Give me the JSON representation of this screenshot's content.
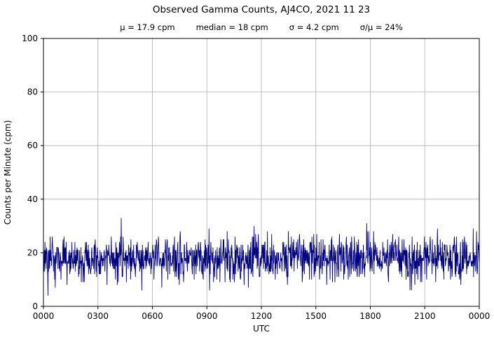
{
  "chart": {
    "title": "Observed Gamma Counts, AJ4CO, 2021 11 23",
    "stats": [
      "μ = 17.9 cpm",
      "median = 18 cpm",
      "σ = 4.2 cpm",
      "σ/μ = 24%"
    ]
  },
  "chart_data": {
    "type": "line",
    "title": "Observed Gamma Counts, AJ4CO, 2021 11 23",
    "subtitle": "μ = 17.9 cpm   median = 18 cpm   σ = 4.2 cpm   σ/μ = 24%",
    "xlabel": "UTC",
    "ylabel": "Counts per Minute (cpm)",
    "ylim": [
      0,
      100
    ],
    "yticks": [
      0,
      20,
      40,
      60,
      80,
      100
    ],
    "xtick_labels": [
      "0000",
      "0300",
      "0600",
      "0900",
      "1200",
      "1500",
      "1800",
      "2100",
      "0000"
    ],
    "x_minutes_range": [
      0,
      1440
    ],
    "grid": true,
    "legend": "none",
    "line_color": "#000080",
    "grid_color": "#b0b0b0",
    "series": [
      {
        "name": "Observed gamma counts (cpm)",
        "points_per_minute": 1,
        "n_points": 1441,
        "stats": {
          "mean_cpm": 17.9,
          "median_cpm": 18,
          "sigma_cpm": 4.2,
          "sigma_over_mean_percent": 24,
          "observed_min_cpm": 3,
          "observed_max_cpm": 33
        }
      }
    ]
  }
}
